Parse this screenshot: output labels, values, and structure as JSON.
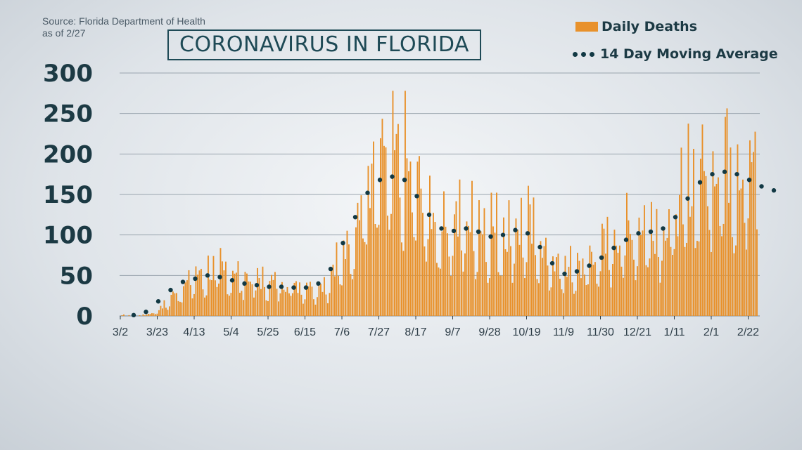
{
  "source": {
    "line1": "Source: Florida Department of Health",
    "line2": "as of 2/27"
  },
  "title": "CORONAVIRUS IN FLORIDA",
  "colors": {
    "bars": "#e8912b",
    "average": "#123944",
    "text": "#1c3a44",
    "grid": "#9aa5ae"
  },
  "chart_data": {
    "type": "bar",
    "title": "CORONAVIRUS IN FLORIDA",
    "legend": "top-right",
    "grid": true,
    "ylim": [
      0,
      300
    ],
    "yticks": [
      0,
      50,
      100,
      150,
      200,
      250,
      300
    ],
    "x_ticks": [
      "3/2",
      "3/23",
      "4/13",
      "5/4",
      "5/25",
      "6/15",
      "7/6",
      "7/27",
      "8/17",
      "9/7",
      "9/28",
      "10/19",
      "11/9",
      "11/30",
      "12/21",
      "1/11",
      "2/1",
      "2/22"
    ],
    "start_date": "2020-03-02",
    "days": 363,
    "series": [
      {
        "name": "Daily Deaths",
        "kind": "bar",
        "note": "daily values approximated from weekly envelope",
        "weekly_envelope": [
          0,
          0,
          1,
          5,
          18,
          35,
          45,
          48,
          52,
          50,
          44,
          42,
          40,
          38,
          38,
          36,
          35,
          40,
          70,
          105,
          140,
          165,
          175,
          170,
          150,
          120,
          105,
          110,
          105,
          108,
          100,
          95,
          102,
          100,
          85,
          62,
          52,
          55,
          62,
          72,
          85,
          95,
          100,
          105,
          103,
          110,
          140,
          160,
          175,
          180,
          175,
          165,
          160,
          150
        ]
      },
      {
        "name": "14 Day Moving Average",
        "kind": "dots",
        "weekly_points": [
          0,
          0,
          1,
          5,
          18,
          32,
          42,
          46,
          50,
          48,
          44,
          40,
          38,
          36,
          36,
          35,
          35,
          40,
          58,
          90,
          122,
          152,
          168,
          172,
          168,
          148,
          125,
          108,
          105,
          108,
          104,
          98,
          100,
          106,
          102,
          85,
          65,
          52,
          55,
          62,
          72,
          84,
          94,
          102,
          104,
          108,
          122,
          145,
          165,
          175,
          178,
          175,
          168,
          160,
          155
        ]
      }
    ]
  }
}
